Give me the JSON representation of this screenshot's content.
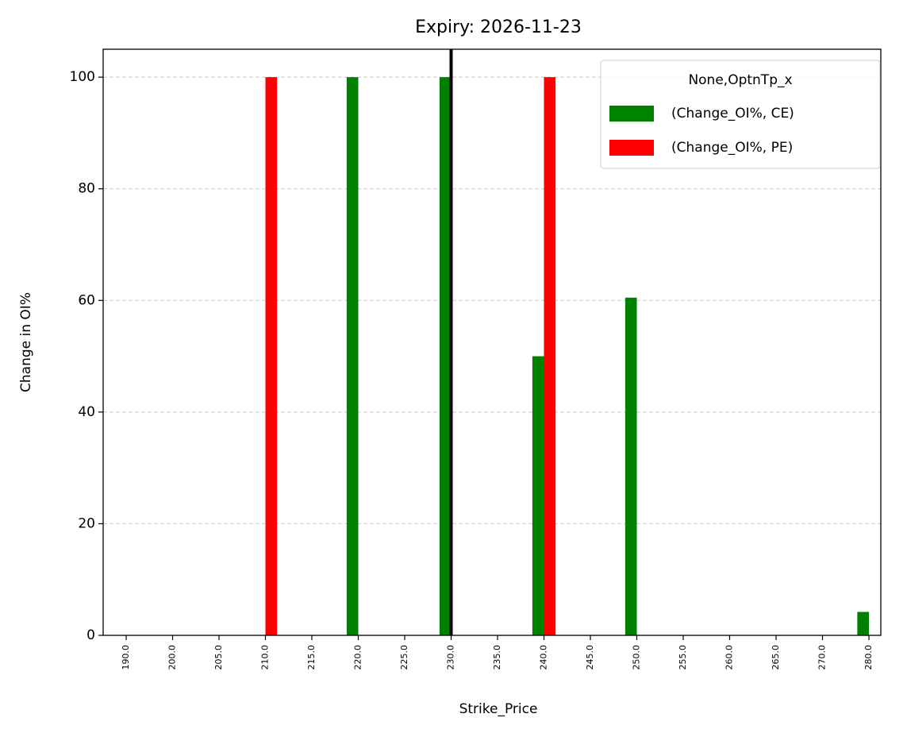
{
  "chart_data": {
    "type": "bar",
    "title": "Expiry: 2026-11-23",
    "x_label": "Strike_Price",
    "y_label": "Change in OI%",
    "categories": [
      "190.0",
      "200.0",
      "205.0",
      "210.0",
      "215.0",
      "220.0",
      "225.0",
      "230.0",
      "235.0",
      "240.0",
      "245.0",
      "250.0",
      "255.0",
      "260.0",
      "265.0",
      "270.0",
      "280.0"
    ],
    "series": [
      {
        "name": "(Change_OI%, CE)",
        "color": "#008000",
        "values": [
          0,
          0,
          0,
          0,
          0,
          100,
          0,
          100,
          0,
          50,
          0,
          60.5,
          0,
          0,
          0,
          0,
          4.2
        ]
      },
      {
        "name": "(Change_OI%, PE)",
        "color": "#ff0000",
        "values": [
          0,
          0,
          0,
          100,
          0,
          0,
          0,
          0,
          0,
          100,
          0,
          0,
          0,
          0,
          0,
          0,
          0
        ]
      }
    ],
    "legend_title": "None,OptnTp_x",
    "legend": "upper right",
    "vline": {
      "category": "230.0",
      "color": "#000000"
    },
    "ylim": [
      0,
      105
    ],
    "yticks": [
      0,
      20,
      40,
      60,
      80,
      100
    ],
    "grid": "y"
  }
}
